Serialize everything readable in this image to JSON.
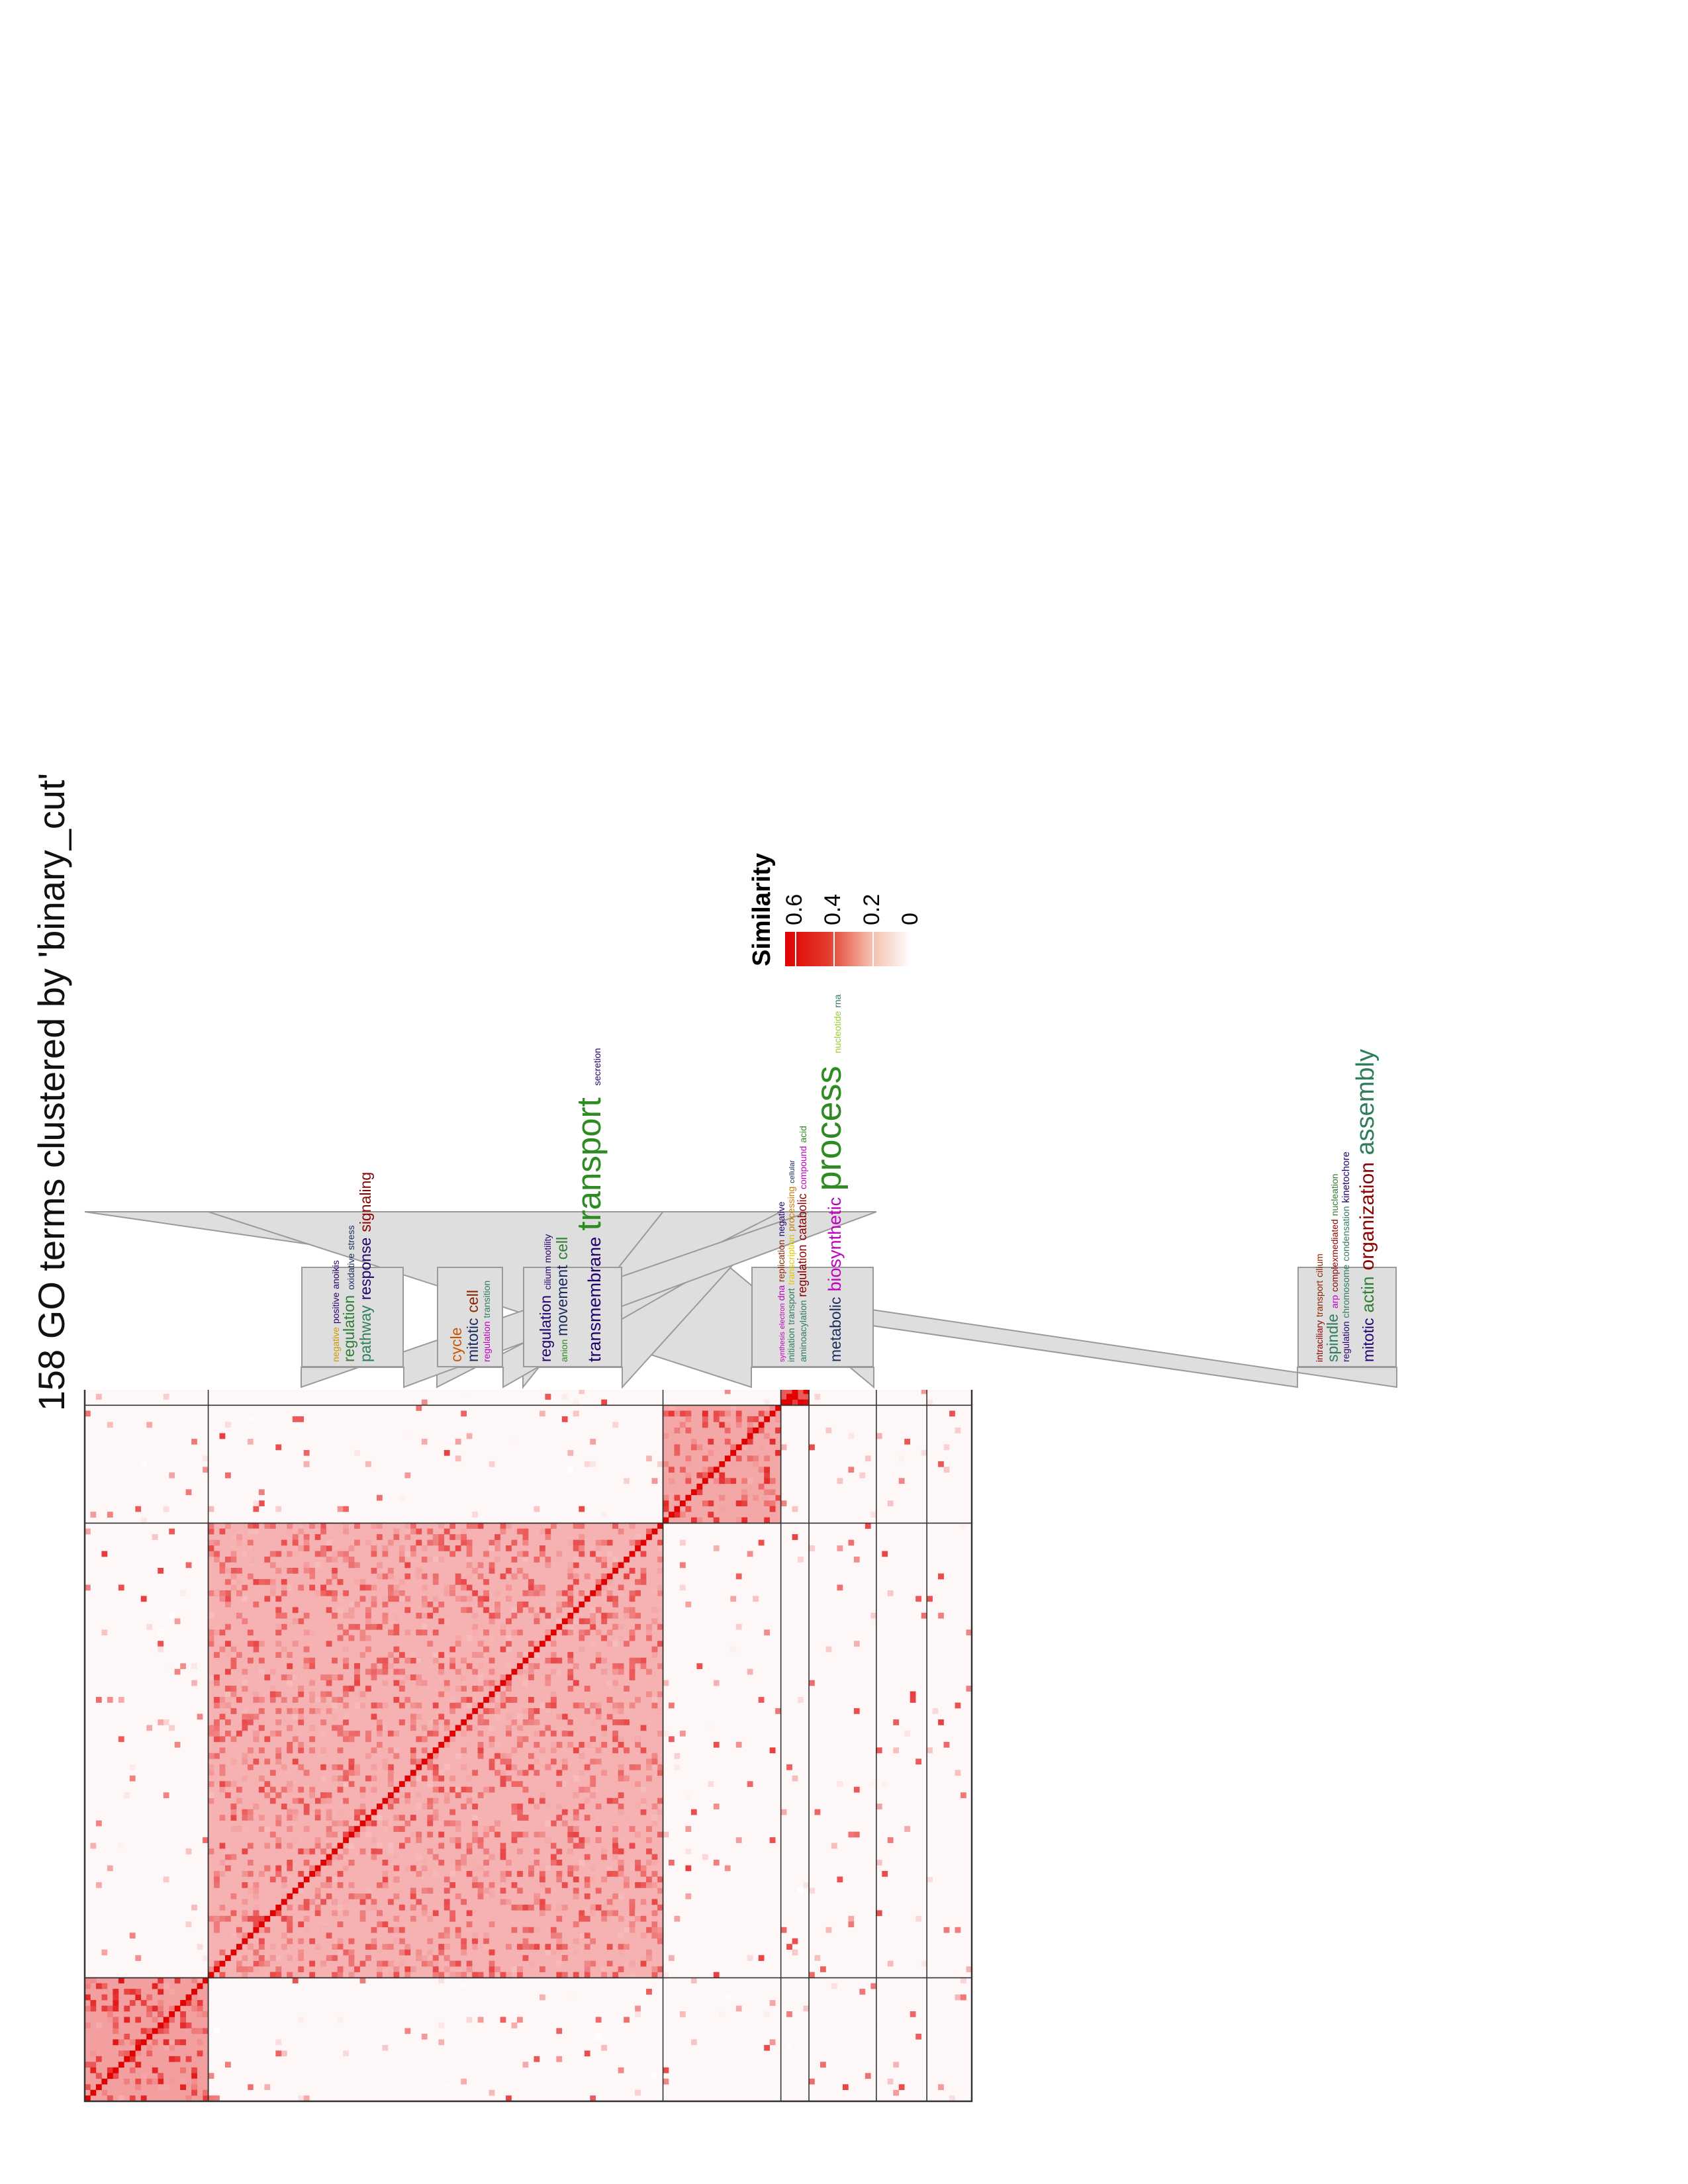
{
  "title": "158 GO terms clustered by 'binary_cut'",
  "legend": {
    "title": "Similarity",
    "ticks": [
      {
        "value": 0.6,
        "label": "0.6"
      },
      {
        "value": 0.4,
        "label": "0.4"
      },
      {
        "value": 0.2,
        "label": "0.2"
      },
      {
        "value": 0,
        "label": "0"
      }
    ],
    "range": [
      0,
      0.65
    ],
    "colors": [
      "#ffffff",
      "#f4b9a8",
      "#e33a2a",
      "#e00000"
    ]
  },
  "chart_data": {
    "type": "heatmap",
    "n_terms": 158,
    "clusters": [
      {
        "id": 1,
        "size": 22,
        "mean_within_similarity": 0.35,
        "words": [
          {
            "text": "mitotic",
            "size": 1.5,
            "color": "#22006b"
          },
          {
            "text": "actin",
            "size": 1.7,
            "color": "#2e7d32"
          },
          {
            "text": "organization",
            "size": 2.0,
            "color": "#8b0000"
          },
          {
            "text": "assembly",
            "size": 2.5,
            "color": "#2e7d5b"
          },
          {
            "text": "regulation",
            "size": 0.9,
            "color": "#22006b"
          },
          {
            "text": "chromosome",
            "size": 0.9,
            "color": "#2e7d5b"
          },
          {
            "text": "condensation",
            "size": 0.9,
            "color": "#2e7d5b"
          },
          {
            "text": "kinetochore",
            "size": 1.0,
            "color": "#22006b"
          },
          {
            "text": "spindle",
            "size": 1.5,
            "color": "#2e7d5b"
          },
          {
            "text": "arp",
            "size": 0.9,
            "color": "#c000c0"
          },
          {
            "text": "complexmediated",
            "size": 0.9,
            "color": "#8b0000"
          },
          {
            "text": "nucleation",
            "size": 0.9,
            "color": "#2e7d32"
          },
          {
            "text": "intraciliary",
            "size": 0.9,
            "color": "#8b0000"
          },
          {
            "text": "transport",
            "size": 0.9,
            "color": "#8b2500"
          },
          {
            "text": "cilium",
            "size": 0.9,
            "color": "#8b2500"
          }
        ]
      },
      {
        "id": 2,
        "size": 81,
        "mean_within_similarity": 0.28,
        "words": [
          {
            "text": "metabolic",
            "size": 1.5,
            "color": "#1a2a5e"
          },
          {
            "text": "biosynthetic",
            "size": 1.8,
            "color": "#c000c0"
          },
          {
            "text": "process",
            "size": 3.6,
            "color": "#2e8b22"
          },
          {
            "text": "nucleotide",
            "size": 0.9,
            "color": "#9acd32"
          },
          {
            "text": "rna",
            "size": 0.9,
            "color": "#2e7d5b"
          },
          {
            "text": "aminoacylation",
            "size": 0.9,
            "color": "#2e7d5b"
          },
          {
            "text": "regulation",
            "size": 1.2,
            "color": "#8b0000"
          },
          {
            "text": "catabolic",
            "size": 1.2,
            "color": "#8b0000"
          },
          {
            "text": "compound",
            "size": 0.9,
            "color": "#c000c0"
          },
          {
            "text": "acid",
            "size": 0.9,
            "color": "#2e8b22"
          },
          {
            "text": "initiation",
            "size": 0.9,
            "color": "#2e7d5b"
          },
          {
            "text": "transport",
            "size": 0.9,
            "color": "#2e7d5b"
          },
          {
            "text": "transcription",
            "size": 0.9,
            "color": "#e0c800"
          },
          {
            "text": "processing",
            "size": 0.9,
            "color": "#cc7a00"
          },
          {
            "text": "cellular",
            "size": 0.7,
            "color": "#1a2a5e"
          },
          {
            "text": "synthesis",
            "size": 0.7,
            "color": "#c000c0"
          },
          {
            "text": "electron",
            "size": 0.7,
            "color": "#c000c0"
          },
          {
            "text": "dna",
            "size": 0.9,
            "color": "#c000c0"
          },
          {
            "text": "replication",
            "size": 0.9,
            "color": "#8b2500"
          },
          {
            "text": "negative",
            "size": 0.9,
            "color": "#22006b"
          }
        ]
      },
      {
        "id": 3,
        "size": 21,
        "mean_within_similarity": 0.32,
        "words": [
          {
            "text": "transmembrane",
            "size": 1.8,
            "color": "#22006b"
          },
          {
            "text": "transport",
            "size": 3.4,
            "color": "#2e8b22"
          },
          {
            "text": "secretion",
            "size": 0.9,
            "color": "#22006b"
          },
          {
            "text": "anion",
            "size": 0.9,
            "color": "#2e8b22"
          },
          {
            "text": "movement",
            "size": 1.5,
            "color": "#1a2a5e"
          },
          {
            "text": "cell",
            "size": 1.5,
            "color": "#2e7d32"
          },
          {
            "text": "regulation",
            "size": 1.5,
            "color": "#22006b"
          },
          {
            "text": "cilium",
            "size": 0.9,
            "color": "#22006b"
          },
          {
            "text": "motility",
            "size": 0.9,
            "color": "#22006b"
          }
        ]
      },
      {
        "id": 4,
        "size": 5,
        "mean_within_similarity": 0.6,
        "words": [
          {
            "text": "regulation",
            "size": 0.9,
            "color": "#c000c0"
          },
          {
            "text": "transition",
            "size": 0.9,
            "color": "#2e7d5b"
          },
          {
            "text": "mitotic",
            "size": 1.5,
            "color": "#1a2a5e"
          },
          {
            "text": "cell",
            "size": 1.5,
            "color": "#8b2500"
          },
          {
            "text": "cycle",
            "size": 1.5,
            "color": "#cc5500"
          }
        ]
      },
      {
        "id": 5,
        "size": 12,
        "mean_within_similarity": 0.4,
        "words": [
          {
            "text": "pathway",
            "size": 1.5,
            "color": "#2e7d5b"
          },
          {
            "text": "response",
            "size": 1.5,
            "color": "#22006b"
          },
          {
            "text": "signaling",
            "size": 1.5,
            "color": "#8b0000"
          },
          {
            "text": "regulation",
            "size": 1.5,
            "color": "#2e7d32"
          },
          {
            "text": "oxidative",
            "size": 0.9,
            "color": "#1a2a5e"
          },
          {
            "text": "stress",
            "size": 0.9,
            "color": "#1a2a5e"
          },
          {
            "text": "negative",
            "size": 0.9,
            "color": "#cc9900"
          },
          {
            "text": "positive",
            "size": 0.9,
            "color": "#22006b"
          },
          {
            "text": "anoikis",
            "size": 0.9,
            "color": "#22006b"
          }
        ]
      },
      {
        "id": 6,
        "size": 9,
        "mean_within_similarity": 0.4,
        "words": []
      },
      {
        "id": 7,
        "size": 8,
        "mean_within_similarity": 0.6,
        "words": []
      }
    ]
  }
}
